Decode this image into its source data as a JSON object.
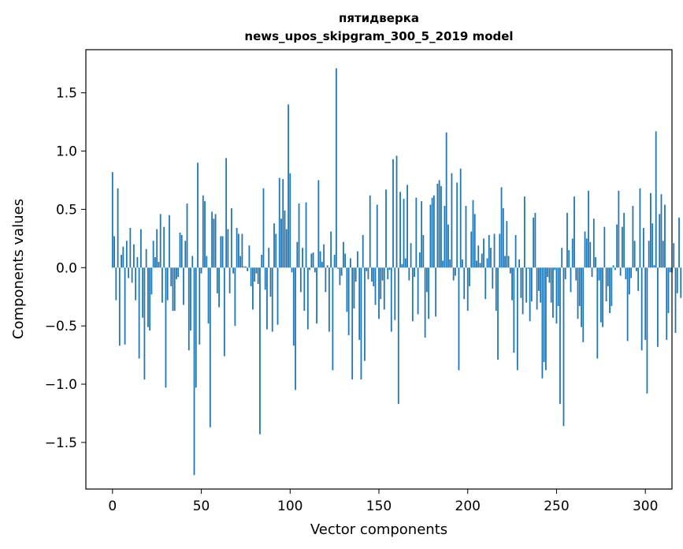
{
  "chart_data": {
    "type": "bar",
    "title": "пятидверка",
    "subtitle": "news_upos_skipgram_300_5_2019 model",
    "xlabel": "Vector components",
    "ylabel": "Components values",
    "xlim": [
      -15,
      315
    ],
    "ylim": [
      -1.9,
      1.87
    ],
    "xticks": [
      0,
      50,
      100,
      150,
      200,
      250,
      300
    ],
    "yticks": [
      -1.5,
      -1.0,
      -0.5,
      0.0,
      0.5,
      1.0,
      1.5
    ],
    "ytick_labels": [
      "−1.5",
      "−1.0",
      "−0.5",
      "0.0",
      "0.5",
      "1.0",
      "1.5"
    ],
    "bar_color": "#1f77b4",
    "grid": false,
    "series": [
      {
        "name": "пятидверка",
        "x_start": 0,
        "values": [
          0.82,
          0.27,
          -0.28,
          0.68,
          -0.67,
          0.11,
          0.18,
          -0.66,
          0.23,
          -0.09,
          0.34,
          -0.13,
          0.2,
          -0.28,
          0.09,
          -0.78,
          0.33,
          -0.43,
          -0.96,
          0.16,
          -0.51,
          -0.54,
          -0.23,
          0.23,
          0.09,
          0.33,
          0.05,
          0.46,
          -0.3,
          0.35,
          -1.03,
          -0.28,
          0.45,
          -0.16,
          -0.37,
          -0.37,
          -0.1,
          -0.08,
          0.3,
          0.28,
          -0.32,
          0.23,
          0.55,
          -0.71,
          -0.54,
          0.1,
          -1.78,
          -1.03,
          0.9,
          -0.66,
          -0.05,
          0.62,
          0.57,
          0.1,
          -0.48,
          -1.37,
          0.48,
          0.42,
          0.46,
          -0.22,
          -0.34,
          0.27,
          0.27,
          -0.76,
          0.94,
          0.33,
          -0.22,
          0.51,
          -0.05,
          -0.5,
          0.34,
          0.29,
          0.1,
          0.29,
          0.01,
          0.01,
          -0.03,
          0.19,
          -0.16,
          -0.36,
          -0.12,
          -0.05,
          -0.14,
          -1.43,
          0.11,
          0.68,
          -0.19,
          -0.53,
          0.17,
          -0.25,
          -0.55,
          0.38,
          0.29,
          -0.49,
          0.77,
          0.42,
          0.76,
          0.49,
          0.33,
          1.4,
          0.81,
          -0.04,
          -0.67,
          -1.05,
          0.22,
          0.55,
          -0.21,
          0.17,
          -0.37,
          0.56,
          -0.53,
          -0.02,
          0.12,
          0.13,
          -0.04,
          -0.48,
          0.75,
          0.14,
          0.05,
          0.2,
          -0.21,
          0.02,
          -0.55,
          0.31,
          -0.88,
          0.11,
          1.71,
          -0.01,
          -0.15,
          -0.07,
          0.22,
          0.12,
          -0.38,
          -0.58,
          0.08,
          -0.96,
          -0.35,
          -0.12,
          0.14,
          -0.62,
          -0.96,
          0.28,
          -0.8,
          -0.03,
          -0.1,
          0.62,
          -0.12,
          -0.16,
          -0.32,
          0.54,
          -0.44,
          -0.27,
          -0.11,
          -0.36,
          0.67,
          -0.1,
          -0.02,
          -0.55,
          0.93,
          -0.45,
          0.96,
          -1.17,
          0.65,
          0.03,
          0.59,
          0.08,
          0.71,
          -0.11,
          0.21,
          -0.46,
          -0.08,
          0.6,
          -0.4,
          0.13,
          0.57,
          0.28,
          -0.6,
          -0.21,
          -0.44,
          0.54,
          0.6,
          0.62,
          -0.42,
          0.72,
          0.75,
          0.7,
          0.06,
          0.53,
          1.16,
          0.37,
          0.07,
          0.81,
          -0.11,
          -0.07,
          0.73,
          -0.88,
          0.85,
          0.07,
          -0.27,
          0.53,
          -0.37,
          -0.16,
          0.31,
          0.58,
          0.46,
          0.06,
          0.19,
          0.04,
          0.12,
          0.25,
          -0.27,
          0.08,
          0.28,
          0.17,
          -0.18,
          0.29,
          -0.37,
          -0.79,
          0.29,
          0.69,
          0.51,
          0.1,
          0.4,
          0.1,
          -0.05,
          -0.28,
          -0.73,
          0.28,
          -0.88,
          0.07,
          -0.26,
          -0.4,
          0.61,
          -0.3,
          -0.01,
          -0.46,
          -0.29,
          0.43,
          0.47,
          -0.36,
          -0.2,
          -0.3,
          -0.95,
          -0.81,
          -0.88,
          -0.08,
          -0.13,
          -0.3,
          -0.43,
          -0.02,
          -0.48,
          -0.33,
          -1.17,
          0.17,
          -1.36,
          -0.1,
          0.47,
          0.15,
          -0.21,
          0.25,
          0.61,
          -0.11,
          -0.44,
          -0.33,
          -0.51,
          -0.64,
          0.31,
          0.25,
          0.66,
          0.22,
          -0.08,
          0.42,
          0.09,
          -0.78,
          -0.11,
          -0.47,
          -0.51,
          0.35,
          -0.29,
          -0.16,
          -0.39,
          -0.33,
          0.02,
          -0.02,
          0.37,
          0.66,
          -0.07,
          0.35,
          0.47,
          -0.1,
          -0.63,
          -0.23,
          -0.09,
          0.53,
          0.23,
          -0.03,
          -0.2,
          0.68,
          -0.71,
          0.34,
          -0.62,
          -1.08,
          0.23,
          0.64,
          0.38,
          0.02,
          1.17,
          -0.68,
          0.46,
          0.63,
          0.23,
          0.54,
          -0.62,
          -0.39,
          -0.04,
          -0.04,
          0.21,
          -0.56,
          -0.22,
          0.43,
          -0.26
        ]
      }
    ]
  }
}
